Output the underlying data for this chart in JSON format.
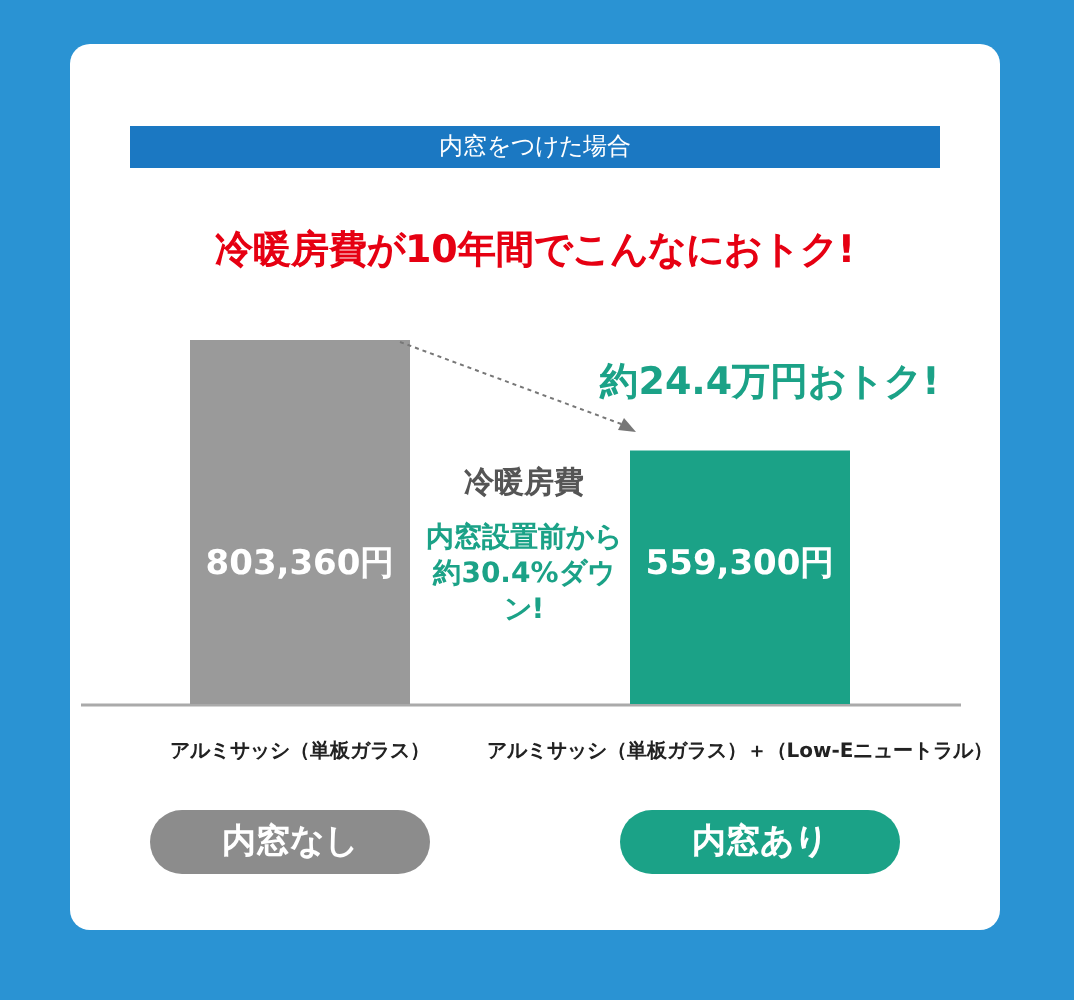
{
  "chart_data": {
    "type": "bar",
    "subtitle": "内窓をつけた場合",
    "title": "冷暖房費が10年間でこんなにおトク!",
    "categories": [
      "アルミサッシ（単板ガラス）",
      "アルミサッシ（単板ガラス）＋（Low-Eニュートラル）"
    ],
    "values": [
      803360,
      559300
    ],
    "colors": [
      "#9a9a9a",
      "#1ba287"
    ],
    "value_labels": [
      "803,360円",
      "559,300円"
    ],
    "annotations": [
      "約24.4万円おトク!",
      "冷暖房費",
      "内窓設置前から約30.4%ダウン!",
      "内窓なし",
      "内窓あり"
    ]
  }
}
